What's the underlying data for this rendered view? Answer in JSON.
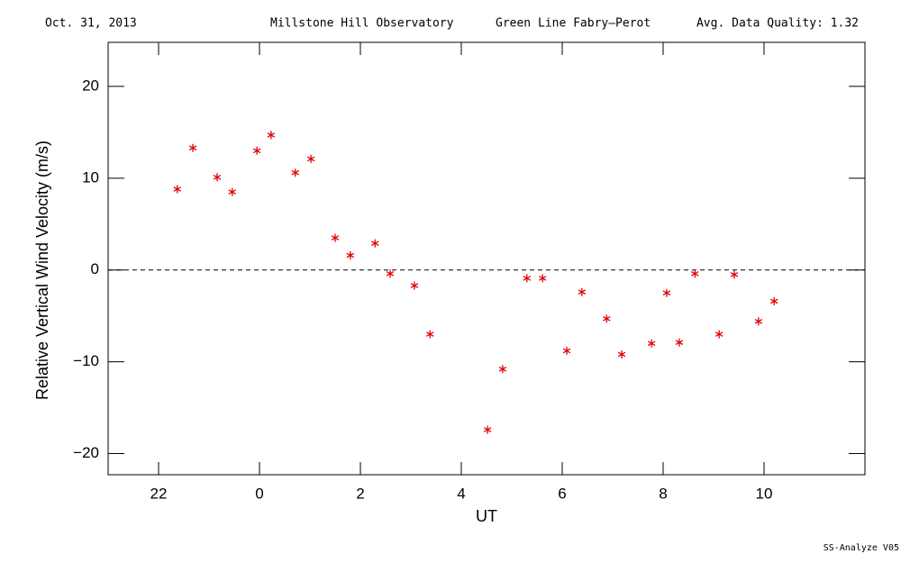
{
  "chart_data": {
    "type": "scatter",
    "header": [
      "Oct. 31, 2013",
      "Millstone Hill Observatory",
      "Green Line Fabry—Perot",
      "Avg. Data Quality: 1.32"
    ],
    "footer": "SS-Analyze V05",
    "xlabel": "UT",
    "ylabel": "Relative Vertical Wind Velocity (m/s)",
    "xlim": [
      -3,
      12
    ],
    "ylim": [
      -22.3,
      24.8
    ],
    "xticks": [
      {
        "value": -2,
        "label": "22"
      },
      0,
      2,
      4,
      6,
      8,
      10
    ],
    "yticks": [
      {
        "value": -20,
        "label": "−20"
      },
      {
        "value": -10,
        "label": "−10"
      },
      0,
      10,
      20
    ],
    "zero_line": true,
    "marker": "asterisk",
    "series": [
      {
        "color": "#e00000",
        "x": [
          -1.63,
          -1.32,
          -0.84,
          -0.54,
          -0.05,
          0.23,
          0.71,
          1.02,
          1.5,
          1.8,
          2.29,
          2.59,
          3.07,
          3.38,
          4.52,
          4.82,
          5.3,
          5.61,
          6.09,
          6.39,
          6.88,
          7.18,
          7.77,
          8.07,
          8.32,
          8.63,
          9.11,
          9.41,
          9.89,
          10.2
        ],
        "values": [
          8.8,
          13.3,
          10.1,
          8.5,
          13.0,
          14.7,
          10.6,
          12.1,
          3.5,
          1.6,
          2.9,
          -0.4,
          -1.7,
          -7.0,
          -17.4,
          -10.8,
          -0.9,
          -0.9,
          -8.8,
          -2.4,
          -5.3,
          -9.2,
          -8.0,
          -2.5,
          -7.9,
          -0.4,
          -7.0,
          -0.5,
          -5.6,
          -3.4
        ]
      }
    ]
  }
}
